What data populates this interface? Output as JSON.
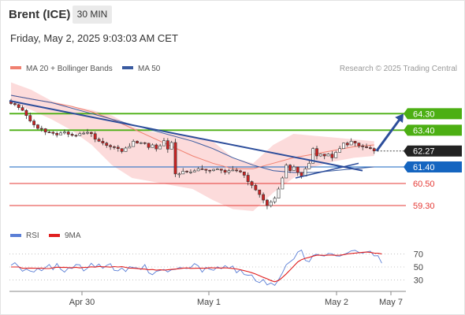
{
  "header": {
    "instrument": "Brent (ICE)",
    "timeframe": "30 MIN",
    "timestamp": "Friday, May 2, 2025 9:03:03 AM CET"
  },
  "legend": {
    "ma20_label": "MA 20 + Bollinger Bands",
    "ma50_label": "MA 50",
    "credit": "Research © 2025 Trading Central",
    "rsi_label": "RSI",
    "ma9_label": "9MA"
  },
  "colors": {
    "resistance": "#4caf13",
    "pivot": "#1565c0",
    "support": "#e53935",
    "trendline": "#2c4d9b",
    "ma20": "#f08070",
    "ma50": "#3a5ba0",
    "bollinger_fill": "#fbd5d5",
    "candle_up": "#ffffff",
    "candle_down": "#cc2222",
    "current_price": "#222222",
    "rsi": "#5b7fd6",
    "rsi_ma9": "#e02020"
  },
  "chart_data": [
    {
      "type": "candlestick",
      "title": "Brent (ICE)",
      "ylim": [
        58.7,
        66.2
      ],
      "x_ticks": [
        "Apr 30",
        "May 1",
        "May 2",
        "May 7"
      ],
      "current_price": 62.27,
      "levels": [
        {
          "value": 64.3,
          "label": "64.30",
          "kind": "resistance"
        },
        {
          "value": 63.4,
          "label": "63.40",
          "kind": "resistance"
        },
        {
          "value": 61.4,
          "label": "61.40",
          "kind": "pivot"
        },
        {
          "value": 60.5,
          "label": "60.50",
          "kind": "support"
        },
        {
          "value": 59.3,
          "label": "59.30",
          "kind": "support"
        }
      ],
      "series": [
        {
          "name": "MA 20 + Bollinger Bands",
          "type": "line",
          "values": [
            65.3,
            65.1,
            64.9,
            64.7,
            64.4,
            64.0,
            63.5,
            63.0,
            62.5,
            62.0,
            61.6,
            61.3,
            61.3,
            61.6,
            61.9,
            62.1,
            62.3,
            62.5,
            62.6
          ]
        },
        {
          "name": "MA 50",
          "type": "line",
          "values": [
            65.3,
            65.1,
            64.9,
            64.6,
            64.3,
            64.0,
            63.7,
            63.4,
            63.1,
            62.8,
            62.4,
            61.9,
            61.5,
            61.2,
            61.1,
            61.1,
            61.2,
            61.3,
            61.4
          ]
        }
      ],
      "bollinger_upper": [
        66.0,
        65.6,
        65.0,
        64.7,
        64.5,
        64.2,
        63.6,
        63.3,
        63.2,
        63.1,
        62.8,
        61.9,
        61.6,
        62.6,
        63.2,
        63.1,
        63.0,
        62.9,
        62.8
      ],
      "bollinger_lower": [
        64.9,
        64.5,
        64.0,
        63.4,
        62.6,
        61.5,
        60.8,
        60.6,
        60.4,
        60.2,
        59.6,
        59.1,
        59.0,
        60.0,
        60.8,
        61.4,
        61.7,
        61.9,
        62.0
      ],
      "candles": [
        [
          65.0,
          64.85,
          65.1,
          64.78
        ],
        [
          64.85,
          64.79,
          64.99,
          64.71
        ],
        [
          64.79,
          64.63,
          64.83,
          64.5
        ],
        [
          64.63,
          64.48,
          64.76,
          64.45
        ],
        [
          64.48,
          64.2,
          64.55,
          64.01
        ],
        [
          64.2,
          63.9,
          64.36,
          63.82
        ],
        [
          63.9,
          63.69,
          64.0,
          63.54
        ],
        [
          63.69,
          63.5,
          63.73,
          63.42
        ],
        [
          63.5,
          63.48,
          63.64,
          63.32
        ],
        [
          63.48,
          63.3,
          63.51,
          63.14
        ],
        [
          63.3,
          63.29,
          63.36,
          63.26
        ],
        [
          63.29,
          63.23,
          63.35,
          63.12
        ],
        [
          63.23,
          63.14,
          63.33,
          63.01
        ],
        [
          63.14,
          63.25,
          63.34,
          63.16
        ],
        [
          63.25,
          63.3,
          63.44,
          63.17
        ],
        [
          63.3,
          63.18,
          63.38,
          63.02
        ],
        [
          63.18,
          63.12,
          63.28,
          63.05
        ],
        [
          63.12,
          63.11,
          63.18,
          63.02
        ],
        [
          63.11,
          63.21,
          63.31,
          63.08
        ],
        [
          63.21,
          63.24,
          63.34,
          63.16
        ],
        [
          63.24,
          63.28,
          63.47,
          63.16
        ],
        [
          63.28,
          63.21,
          63.33,
          63.03
        ],
        [
          63.21,
          62.91,
          63.33,
          62.75
        ],
        [
          62.91,
          62.8,
          63.0,
          62.76
        ],
        [
          62.8,
          62.7,
          62.98,
          62.58
        ],
        [
          62.7,
          62.57,
          62.77,
          62.44
        ],
        [
          62.57,
          62.5,
          62.65,
          62.33
        ],
        [
          62.5,
          62.48,
          62.57,
          62.35
        ],
        [
          62.48,
          62.4,
          62.6,
          62.23
        ],
        [
          62.4,
          62.24,
          62.39,
          62.14
        ],
        [
          62.24,
          62.43,
          62.51,
          62.27
        ],
        [
          62.43,
          62.51,
          62.69,
          62.46
        ],
        [
          62.51,
          62.8,
          62.9,
          62.73
        ],
        [
          62.8,
          62.7,
          62.85,
          62.66
        ],
        [
          62.7,
          62.72,
          62.77,
          62.64
        ],
        [
          62.72,
          62.69,
          62.76,
          62.61
        ],
        [
          62.69,
          62.46,
          62.71,
          62.34
        ],
        [
          62.46,
          62.6,
          62.68,
          62.49
        ],
        [
          62.6,
          62.38,
          62.68,
          62.24
        ],
        [
          62.38,
          62.55,
          62.65,
          62.52
        ],
        [
          62.55,
          62.83,
          62.98,
          62.64
        ],
        [
          62.83,
          62.37,
          62.97,
          62.17
        ],
        [
          62.37,
          62.73,
          62.82,
          62.7
        ],
        [
          62.73,
          61.02,
          62.94,
          60.85
        ],
        [
          61.02,
          61.02,
          61.1,
          60.81
        ],
        [
          61.02,
          61.17,
          61.34,
          61.11
        ],
        [
          61.17,
          61.13,
          61.22,
          61.06
        ],
        [
          61.13,
          61.13,
          61.27,
          61.02
        ],
        [
          61.13,
          61.19,
          61.29,
          61.12
        ],
        [
          61.19,
          61.3,
          61.4,
          61.17
        ],
        [
          61.3,
          61.28,
          61.5,
          61.24
        ],
        [
          61.28,
          61.22,
          61.26,
          61.05
        ],
        [
          61.22,
          61.2,
          61.25,
          61.05
        ],
        [
          61.2,
          61.27,
          61.3,
          61.15
        ],
        [
          61.27,
          61.29,
          61.34,
          61.25
        ],
        [
          61.29,
          61.22,
          61.27,
          61.05
        ],
        [
          61.22,
          61.11,
          61.3,
          60.98
        ],
        [
          61.11,
          61.2,
          61.3,
          61.0
        ],
        [
          61.2,
          61.23,
          61.45,
          61.18
        ],
        [
          61.23,
          61.19,
          61.35,
          61.11
        ],
        [
          61.19,
          61.13,
          61.25,
          61.07
        ],
        [
          61.13,
          60.95,
          61.1,
          60.8
        ],
        [
          60.95,
          60.6,
          61.1,
          60.4
        ],
        [
          60.6,
          60.4,
          60.66,
          60.24
        ],
        [
          60.4,
          60.15,
          60.49,
          60.1
        ],
        [
          60.15,
          59.9,
          60.15,
          59.73
        ],
        [
          59.9,
          59.6,
          60.01,
          59.41
        ],
        [
          59.6,
          59.3,
          59.66,
          59.1
        ],
        [
          59.3,
          59.5,
          59.6,
          59.2
        ],
        [
          59.5,
          59.7,
          59.8,
          59.4
        ],
        [
          59.7,
          60.2,
          60.31,
          59.98
        ],
        [
          60.2,
          60.8,
          60.89,
          60.64
        ],
        [
          60.8,
          61.5,
          61.6,
          61.43
        ],
        [
          61.5,
          61.2,
          61.56,
          61.07
        ],
        [
          61.2,
          61.4,
          61.52,
          61.33
        ],
        [
          61.4,
          61.1,
          61.31,
          60.91
        ],
        [
          61.1,
          60.9,
          61.0,
          60.77
        ],
        [
          60.9,
          61.3,
          61.41,
          61.2
        ],
        [
          61.3,
          61.6,
          61.78,
          61.56
        ],
        [
          61.6,
          62.4,
          62.48,
          62.32
        ],
        [
          62.4,
          62.0,
          62.55,
          61.81
        ],
        [
          62.0,
          62.1,
          62.13,
          61.95
        ],
        [
          62.1,
          62.0,
          62.07,
          61.82
        ],
        [
          62.0,
          62.1,
          62.15,
          62.0
        ],
        [
          62.1,
          61.9,
          62.26,
          61.72
        ],
        [
          61.9,
          62.2,
          62.28,
          62.08
        ],
        [
          62.2,
          62.4,
          62.55,
          62.28
        ],
        [
          62.4,
          62.7,
          62.72,
          62.53
        ],
        [
          62.7,
          62.6,
          62.78,
          62.49
        ],
        [
          62.6,
          62.8,
          62.96,
          62.76
        ],
        [
          62.8,
          62.7,
          62.82,
          62.51
        ],
        [
          62.7,
          62.55,
          62.72,
          62.43
        ],
        [
          62.55,
          62.5,
          62.65,
          62.31
        ],
        [
          62.5,
          62.45,
          62.67,
          62.41
        ],
        [
          62.45,
          62.4,
          62.57,
          62.35
        ],
        [
          62.4,
          62.27,
          62.46,
          62.11
        ]
      ],
      "projection": [
        [
          62.27,
          64.3
        ]
      ],
      "trendlines": [
        [
          65.0,
          61.2
        ],
        [
          60.8,
          61.6
        ]
      ]
    },
    {
      "type": "line",
      "title": "RSI",
      "ylim": [
        15,
        85
      ],
      "y_ticks": [
        70,
        50,
        30
      ],
      "series": [
        {
          "name": "RSI",
          "values": [
            52.5,
            56.5,
            50.5,
            43.5,
            46.7,
            43.7,
            42.3,
            48.0,
            44.2,
            49.2,
            53.7,
            45.6,
            55.3,
            46.5,
            42.2,
            48.6,
            47.7,
            53.8,
            53.2,
            43.9,
            48.1,
            55.7,
            49.8,
            54.5,
            48.0,
            52.4,
            55.1,
            44.8,
            44.1,
            48.4,
            43.0,
            50.5,
            49.0,
            48.6,
            46.1,
            53.6,
            41.1,
            38.2,
            43.4,
            44.6,
            46.2,
            42.4,
            45.8,
            46.2,
            49.0,
            48.4,
            47.7,
            49.1,
            55.2,
            51.7,
            42.0,
            49.3,
            46.6,
            44.8,
            50.3,
            47.4,
            52.0,
            48.0,
            51.6,
            41.1,
            45.9,
            38.4,
            37.3,
            37.7,
            28.5,
            26.0,
            30.8,
            22.5,
            25.5,
            21.8,
            30.6,
            40.8,
            53.4,
            57.8,
            62.4,
            72.8,
            75.8,
            60.0,
            57.9,
            67.6,
            69.5,
            67.6,
            66.7,
            70.8,
            70.2,
            67.0,
            66.5,
            68.9,
            71.4,
            74.8,
            75.5,
            72.5,
            71.3,
            73.2,
            74.1,
            67.0,
            67.3,
            55.8
          ]
        },
        {
          "name": "9MA",
          "values": [
            50.0,
            50.0,
            50.0,
            48.0,
            48.1,
            48.3,
            48.1,
            48.0,
            48.3,
            47.7,
            47.6,
            48.7,
            49.6,
            49.3,
            49.5,
            49.0,
            48.9,
            49.5,
            48.6,
            49.3,
            49.5,
            50.3,
            49.8,
            50.8,
            50.3,
            50.3,
            49.7,
            50.6,
            50.0,
            50.5,
            49.4,
            48.3,
            48.1,
            47.7,
            47.1,
            46.7,
            45.7,
            46.1,
            45.1,
            45.6,
            45.2,
            45.7,
            46.2,
            46.8,
            47.4,
            48.1,
            48.5,
            47.8,
            47.9,
            48.1,
            48.2,
            48.0,
            48.9,
            48.6,
            48.6,
            48.3,
            48.7,
            48.2,
            47.7,
            47.0,
            45.8,
            44.3,
            42.9,
            41.2,
            39.1,
            36.6,
            34.1,
            31.9,
            29.1,
            27.3,
            29.4,
            33.9,
            39.4,
            45.3,
            51.4,
            57.7,
            61.2,
            63.3,
            64.7,
            66.5,
            68.0,
            68.1,
            67.8,
            68.2,
            68.2,
            67.9,
            68.1,
            68.8,
            69.9,
            70.6,
            71.2,
            71.8,
            72.5,
            72.8,
            72.4,
            71.3,
            71.0,
            70.0
          ]
        }
      ]
    }
  ]
}
